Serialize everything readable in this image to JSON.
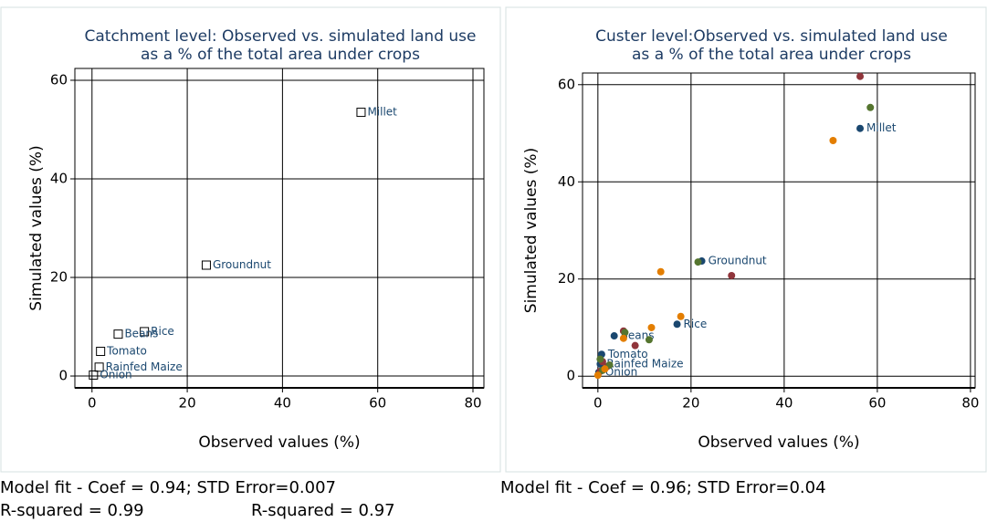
{
  "chart_data": [
    {
      "type": "scatter",
      "marker": "square",
      "title": [
        "Catchment level: Observed vs. simulated land use",
        "as a % of the total area under crops"
      ],
      "x_label": "Observed values (%)",
      "y_label": "Simulated values (%)",
      "xlim": [
        -3.6,
        82.3
      ],
      "ylim": [
        -2.4,
        62.4
      ],
      "xticks": [
        0,
        20,
        40,
        60,
        80
      ],
      "yticks": [
        0,
        20,
        40,
        60
      ],
      "grid": true,
      "series": [
        {
          "color": "#1a476f",
          "x": [
            56.5,
            24,
            11,
            5.5,
            1.8,
            1.5,
            0.3
          ],
          "values": [
            53.5,
            22.5,
            9,
            8.5,
            5,
            1.8,
            0.2
          ],
          "labels": [
            "Millet",
            "Groundnut",
            "Rice",
            "Beans",
            "Tomato",
            "Rainfed Maize",
            "Onion"
          ]
        }
      ]
    },
    {
      "type": "scatter",
      "marker": "circle",
      "title": [
        "Custer level:Observed vs. simulated land use",
        "as a % of the total area under crops"
      ],
      "x_label": "Observed values (%)",
      "y_label": "Simulated values (%)",
      "xlim": [
        -3.3,
        81
      ],
      "ylim": [
        -2.4,
        62.4
      ],
      "xticks": [
        0,
        20,
        40,
        60,
        80
      ],
      "yticks": [
        0,
        20,
        40,
        60
      ],
      "grid": true,
      "series": [
        {
          "color": "#1a476f",
          "x": [
            56.3,
            22.3,
            17,
            3.5,
            0.8,
            0.5,
            0.2
          ],
          "values": [
            51,
            23.7,
            10.7,
            8.3,
            4.5,
            2.5,
            0.8
          ],
          "labels": [
            "Millet",
            "Groundnut",
            "Rice",
            "Beans",
            "Tomato",
            "Rainfed Maize",
            "Onion"
          ]
        },
        {
          "color": "#90353b",
          "x": [
            56.3,
            28.7,
            8,
            5.5,
            1,
            2,
            0.5
          ],
          "values": [
            61.7,
            20.7,
            6.3,
            9.3,
            3,
            2,
            1
          ]
        },
        {
          "color": "#55752f",
          "x": [
            58.5,
            21.5,
            11,
            5.8,
            0.5,
            2.5,
            1
          ],
          "values": [
            55.3,
            23.5,
            7.5,
            9,
            3.5,
            2.3,
            1.2
          ]
        },
        {
          "color": "#e37e00",
          "x": [
            50.5,
            13.5,
            17.8,
            11.5,
            5.5,
            1.5,
            0
          ],
          "values": [
            48.5,
            21.5,
            12.3,
            10,
            7.8,
            1.5,
            0.2
          ]
        }
      ]
    }
  ],
  "captions": [
    "Model fit - Coef = 0.94; STD Error=0.007",
    "Model fit - Coef = 0.96; STD Error=0.04",
    "R-squared = 0.99",
    "R-squared = 0.97"
  ]
}
